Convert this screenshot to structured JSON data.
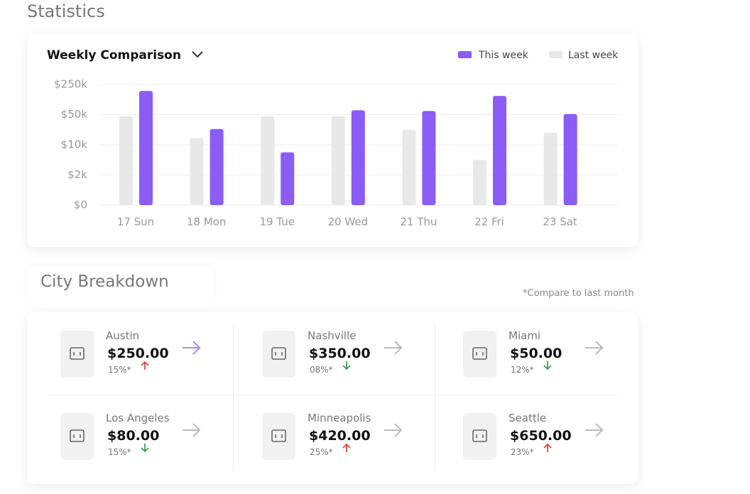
{
  "header": {
    "title": "Statistics"
  },
  "chart_data": {
    "type": "bar",
    "title": "Weekly Comparison",
    "categories": [
      "17 Sun",
      "18 Mon",
      "19 Tue",
      "20 Wed",
      "21 Thu",
      "22 Fri",
      "23 Sat"
    ],
    "series": [
      {
        "name": "This week",
        "color": "#8b5cf6",
        "values": [
          207000,
          31000,
          8000,
          79000,
          74000,
          174000,
          54000
        ]
      },
      {
        "name": "Last week",
        "color": "#e8e8e8",
        "values": [
          48000,
          19000,
          48000,
          48000,
          30000,
          6000,
          26000
        ]
      }
    ],
    "ylim": [
      0,
      250000
    ],
    "yticks": [
      {
        "value": 0,
        "label": "$0"
      },
      {
        "value": 2000,
        "label": "$2k"
      },
      {
        "value": 10000,
        "label": "$10k"
      },
      {
        "value": 50000,
        "label": "$50k"
      },
      {
        "value": 250000,
        "label": "$250k"
      }
    ],
    "grid": true
  },
  "city_breakdown": {
    "title": "City Breakdown",
    "note": "*Compare to last month",
    "cities": [
      {
        "name": "Austin",
        "amount": "$250.00",
        "change": "15%*",
        "trend": "up"
      },
      {
        "name": "Nashville",
        "amount": "$350.00",
        "change": "08%*",
        "trend": "down"
      },
      {
        "name": "Miami",
        "amount": "$50.00",
        "change": "12%*",
        "trend": "down"
      },
      {
        "name": "Los Angeles",
        "amount": "$80.00",
        "change": "15%*",
        "trend": "down"
      },
      {
        "name": "Minneapolis",
        "amount": "$420.00",
        "change": "25%*",
        "trend": "up"
      },
      {
        "name": "Seattle",
        "amount": "$650.00",
        "change": "23%*",
        "trend": "up"
      }
    ]
  }
}
